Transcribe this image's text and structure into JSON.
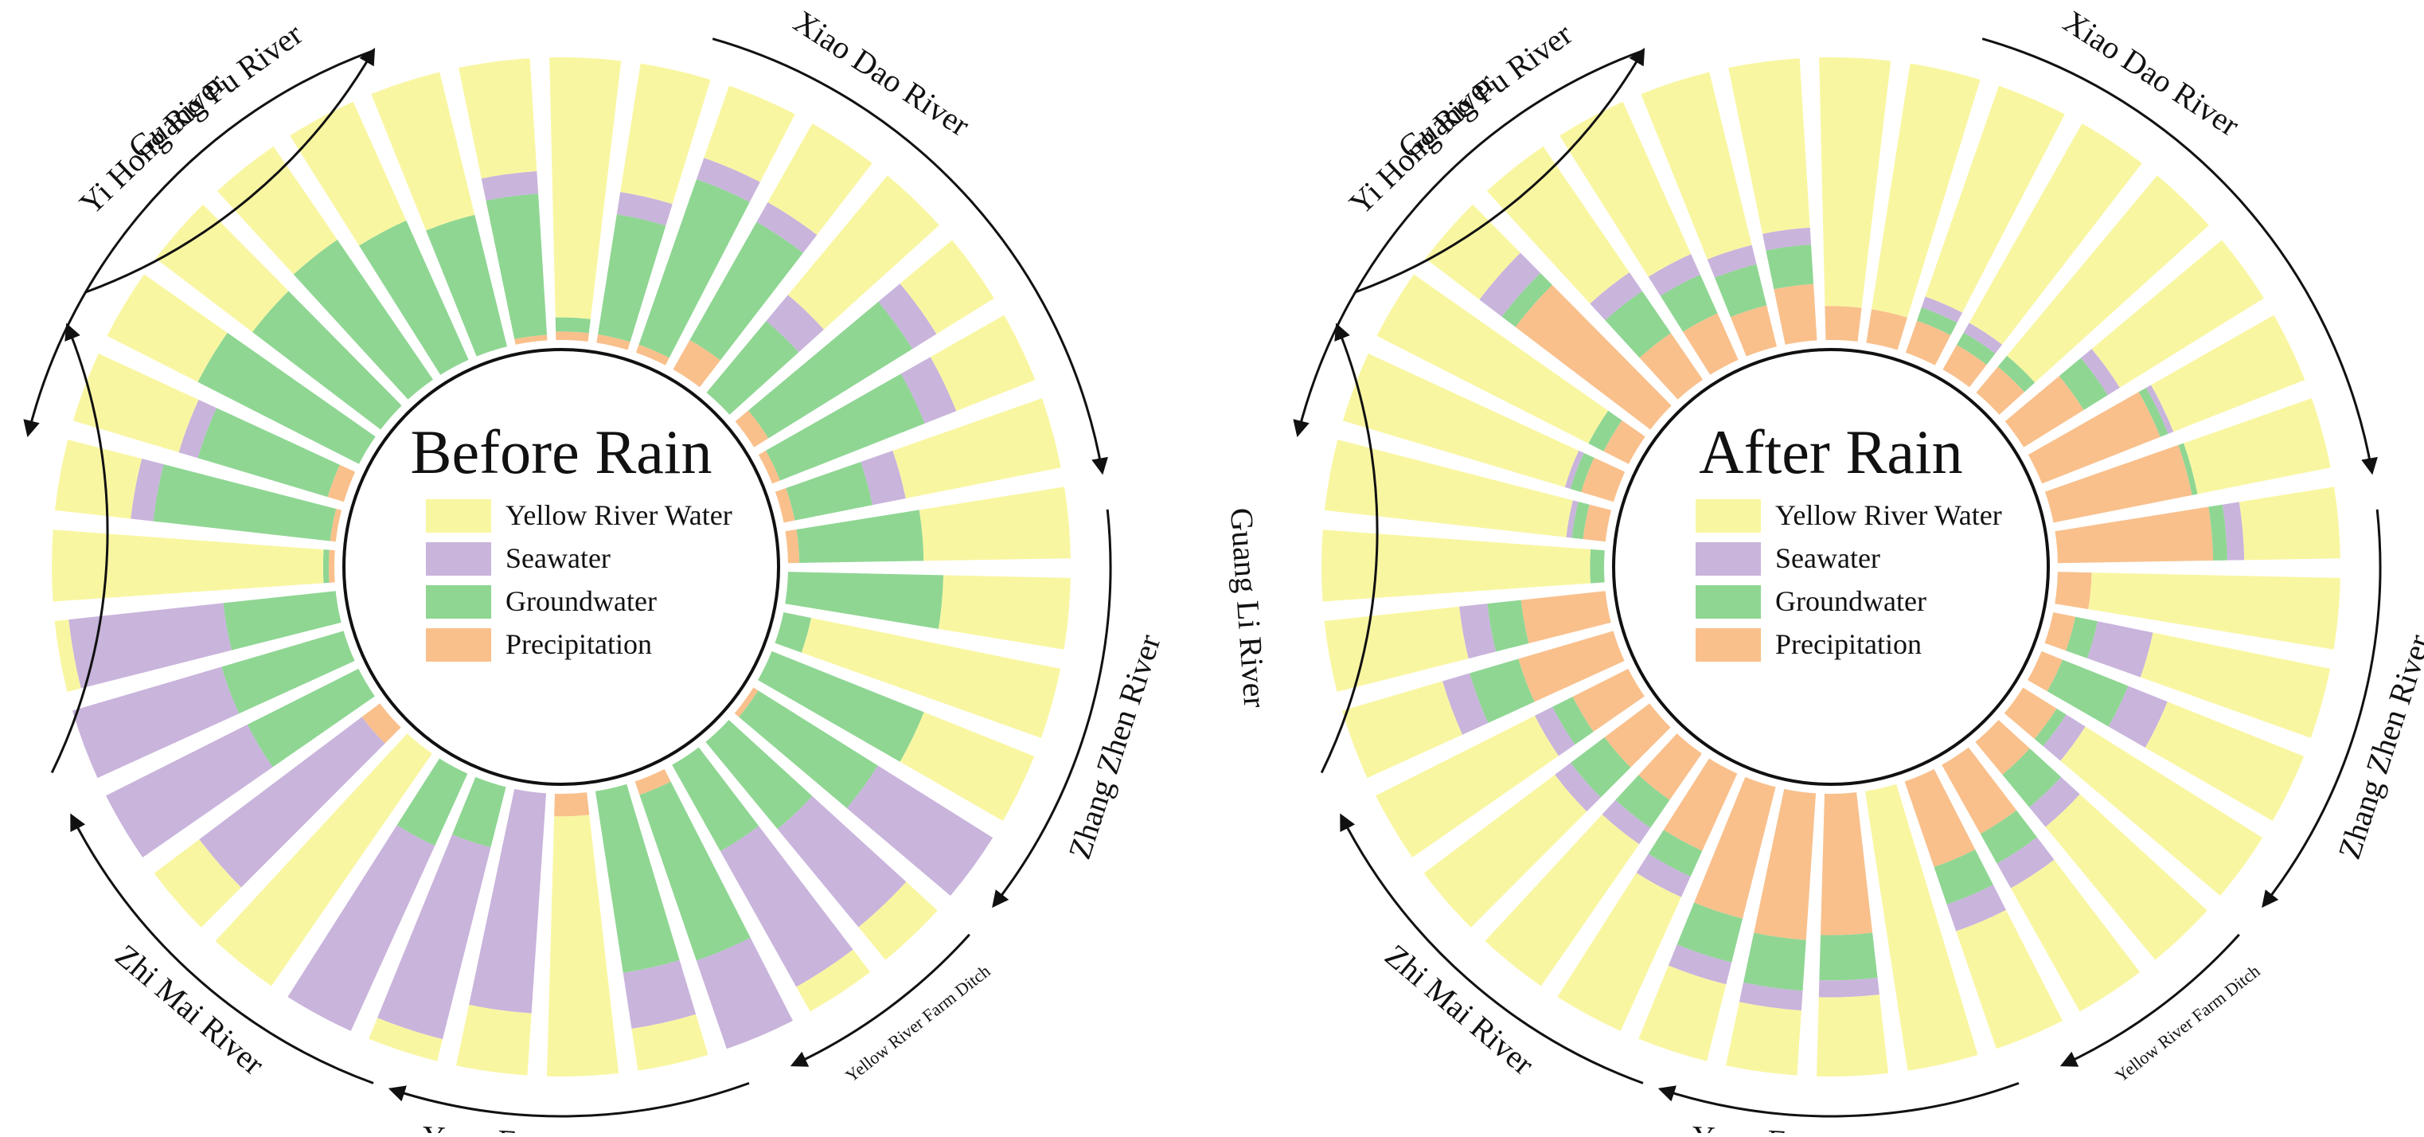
{
  "colors": {
    "yellow_river_water": "#f9f6a2",
    "seawater": "#c9b4dc",
    "groundwater": "#8fd693",
    "precipitation": "#f9c08c",
    "frame": "#111111",
    "background": "#ffffff"
  },
  "legend": [
    "Yellow River Water",
    "Seawater",
    "Groundwater",
    "Precipitation"
  ],
  "chart_data": [
    {
      "type": "radial-stacked-bar",
      "title": "Before Rain",
      "series": [
        "Precipitation",
        "Groundwater",
        "Seawater",
        "Yellow River Water"
      ],
      "unit": "proportion",
      "sample_count": 35,
      "samples": [
        [
          0.02,
          0.02,
          0.0,
          0.96
        ],
        [
          0.02,
          0.63,
          0.08,
          0.27
        ],
        [
          0.06,
          0.48,
          0.07,
          0.39
        ],
        [
          0.0,
          0.64,
          0.0,
          0.36
        ],
        [
          0.0,
          0.57,
          0.0,
          0.43
        ],
        [
          0.0,
          0.6,
          0.0,
          0.4
        ],
        [
          0.0,
          0.54,
          0.0,
          0.46
        ],
        [
          0.0,
          0.48,
          0.0,
          0.52
        ],
        [
          0.02,
          0.5,
          0.08,
          0.4
        ],
        [
          0.03,
          0.05,
          0.0,
          0.92
        ],
        [
          0.03,
          0.43,
          0.08,
          0.46
        ],
        [
          0.03,
          0.62,
          0.08,
          0.27
        ],
        [
          0.12,
          0.48,
          0.08,
          0.32
        ],
        [
          0.0,
          0.33,
          0.12,
          0.55
        ],
        [
          0.06,
          0.6,
          0.1,
          0.24
        ],
        [
          0.03,
          0.55,
          0.12,
          0.3
        ],
        [
          0.04,
          0.28,
          0.12,
          0.56
        ],
        [
          0.04,
          0.44,
          0.0,
          0.52
        ],
        [
          0.0,
          0.55,
          0.0,
          0.45
        ],
        [
          0.0,
          0.1,
          0.0,
          0.9
        ],
        [
          0.0,
          0.58,
          0.0,
          0.42
        ],
        [
          0.02,
          0.5,
          0.48,
          0.0
        ],
        [
          0.0,
          0.4,
          0.45,
          0.15
        ],
        [
          0.0,
          0.35,
          0.55,
          0.1
        ],
        [
          0.05,
          0.62,
          0.33,
          0.0
        ],
        [
          0.0,
          0.65,
          0.2,
          0.15
        ],
        [
          0.08,
          0.0,
          0.0,
          0.92
        ],
        [
          0.0,
          0.0,
          0.78,
          0.22
        ],
        [
          0.0,
          0.22,
          0.7,
          0.08
        ],
        [
          0.0,
          0.28,
          0.72,
          0.0
        ],
        [
          0.0,
          0.0,
          0.0,
          1.0
        ],
        [
          0.08,
          0.0,
          0.72,
          0.2
        ],
        [
          0.0,
          0.44,
          0.56,
          0.0
        ],
        [
          0.0,
          0.45,
          0.55,
          0.0
        ],
        [
          0.0,
          0.4,
          0.55,
          0.05
        ]
      ]
    },
    {
      "type": "radial-stacked-bar",
      "title": "After Rain",
      "series": [
        "Precipitation",
        "Groundwater",
        "Seawater",
        "Yellow River Water"
      ],
      "unit": "proportion",
      "sample_count": 35,
      "samples": [
        [
          0.0,
          0.05,
          0.0,
          0.95
        ],
        [
          0.08,
          0.04,
          0.02,
          0.86
        ],
        [
          0.12,
          0.04,
          0.02,
          0.82
        ],
        [
          0.1,
          0.06,
          0.0,
          0.84
        ],
        [
          0.6,
          0.06,
          0.1,
          0.24
        ],
        [
          0.2,
          0.18,
          0.08,
          0.54
        ],
        [
          0.18,
          0.15,
          0.08,
          0.59
        ],
        [
          0.15,
          0.15,
          0.07,
          0.63
        ],
        [
          0.2,
          0.14,
          0.06,
          0.6
        ],
        [
          0.12,
          0.0,
          0.0,
          0.88
        ],
        [
          0.12,
          0.0,
          0.0,
          0.88
        ],
        [
          0.12,
          0.05,
          0.04,
          0.79
        ],
        [
          0.1,
          0.05,
          0.04,
          0.81
        ],
        [
          0.12,
          0.05,
          0.0,
          0.83
        ],
        [
          0.25,
          0.1,
          0.05,
          0.6
        ],
        [
          0.45,
          0.03,
          0.02,
          0.5
        ],
        [
          0.5,
          0.02,
          0.0,
          0.48
        ],
        [
          0.55,
          0.05,
          0.06,
          0.34
        ],
        [
          0.12,
          0.0,
          0.0,
          0.88
        ],
        [
          0.08,
          0.08,
          0.2,
          0.64
        ],
        [
          0.08,
          0.25,
          0.15,
          0.52
        ],
        [
          0.14,
          0.04,
          0.08,
          0.74
        ],
        [
          0.15,
          0.15,
          0.09,
          0.61
        ],
        [
          0.28,
          0.12,
          0.1,
          0.5
        ],
        [
          0.32,
          0.14,
          0.1,
          0.44
        ],
        [
          0.0,
          0.0,
          0.0,
          1.0
        ],
        [
          0.5,
          0.16,
          0.06,
          0.28
        ],
        [
          0.52,
          0.18,
          0.07,
          0.23
        ],
        [
          0.48,
          0.16,
          0.08,
          0.28
        ],
        [
          0.3,
          0.1,
          0.08,
          0.52
        ],
        [
          0.2,
          0.12,
          0.07,
          0.61
        ],
        [
          0.2,
          0.15,
          0.07,
          0.58
        ],
        [
          0.22,
          0.08,
          0.07,
          0.63
        ],
        [
          0.35,
          0.18,
          0.1,
          0.37
        ],
        [
          0.3,
          0.12,
          0.1,
          0.48
        ]
      ]
    }
  ],
  "rivers": [
    {
      "name": "Guang  Pu  River"
    },
    {
      "name": "Xiao Dao River"
    },
    {
      "name": "Zhang Zhen River"
    },
    {
      "name": "Yellow River Farm Ditch"
    },
    {
      "name": "Yong Feng River"
    },
    {
      "name": "Zhi Mai River"
    },
    {
      "name": "Guang Li River"
    },
    {
      "name": "Yi Hong River"
    }
  ]
}
